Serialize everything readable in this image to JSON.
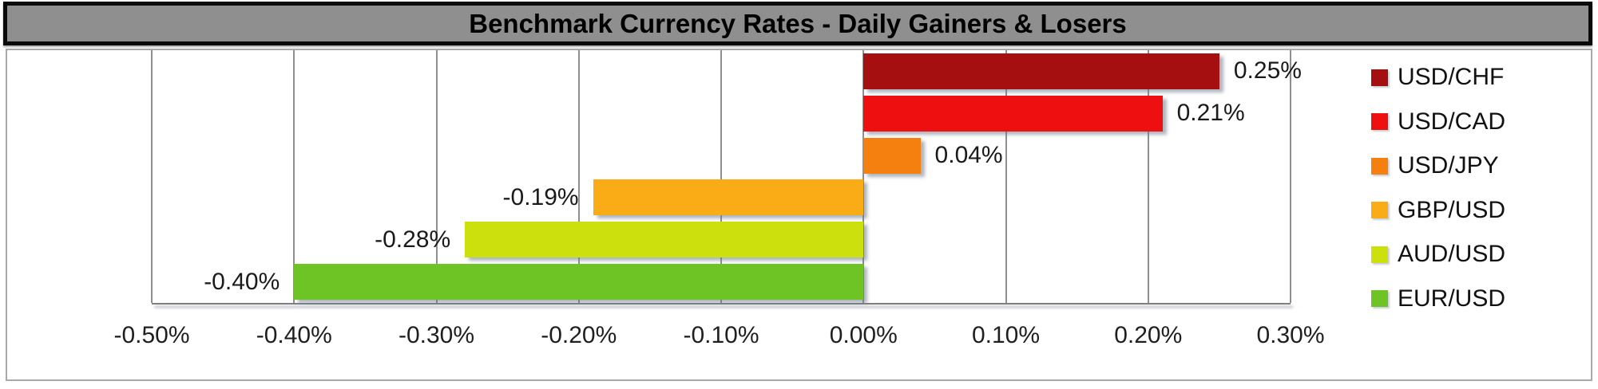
{
  "title_bar": {
    "text": "Benchmark Currency Rates - Daily Gainers & Losers",
    "background": "#8f8f8f",
    "border_color": "#0a0a0a",
    "text_color": "#000000"
  },
  "chart_data": {
    "type": "bar",
    "orientation": "horizontal",
    "title": "Benchmark Currency Rates - Daily Gainers & Losers",
    "categories": [
      "USD/CHF",
      "USD/CAD",
      "USD/JPY",
      "GBP/USD",
      "AUD/USD",
      "EUR/USD"
    ],
    "values": [
      0.25,
      0.21,
      0.04,
      -0.19,
      -0.28,
      -0.4
    ],
    "value_labels": [
      "0.25%",
      "0.21%",
      "0.04%",
      "-0.19%",
      "-0.28%",
      "-0.40%"
    ],
    "bar_colors": [
      "#a60f0f",
      "#ee1010",
      "#f5800f",
      "#f9ac15",
      "#cce00d",
      "#6ec424"
    ],
    "xlabel": "",
    "ylabel": "",
    "xlim": [
      -0.5,
      0.3
    ],
    "x_tick_values": [
      -0.5,
      -0.4,
      -0.3,
      -0.2,
      -0.1,
      0.0,
      0.1,
      0.2,
      0.3
    ],
    "x_tick_labels": [
      "-0.50%",
      "-0.40%",
      "-0.30%",
      "-0.20%",
      "-0.10%",
      "0.00%",
      "0.10%",
      "0.20%",
      "0.30%"
    ],
    "grid": true,
    "gridline_color": "#8f8f8f",
    "legend_position": "right",
    "legend": [
      {
        "label": "USD/CHF",
        "color": "#a60f0f"
      },
      {
        "label": "USD/CAD",
        "color": "#ee1010"
      },
      {
        "label": "USD/JPY",
        "color": "#f5800f"
      },
      {
        "label": "GBP/USD",
        "color": "#f9ac15"
      },
      {
        "label": "AUD/USD",
        "color": "#cce00d"
      },
      {
        "label": "EUR/USD",
        "color": "#6ec424"
      }
    ]
  }
}
